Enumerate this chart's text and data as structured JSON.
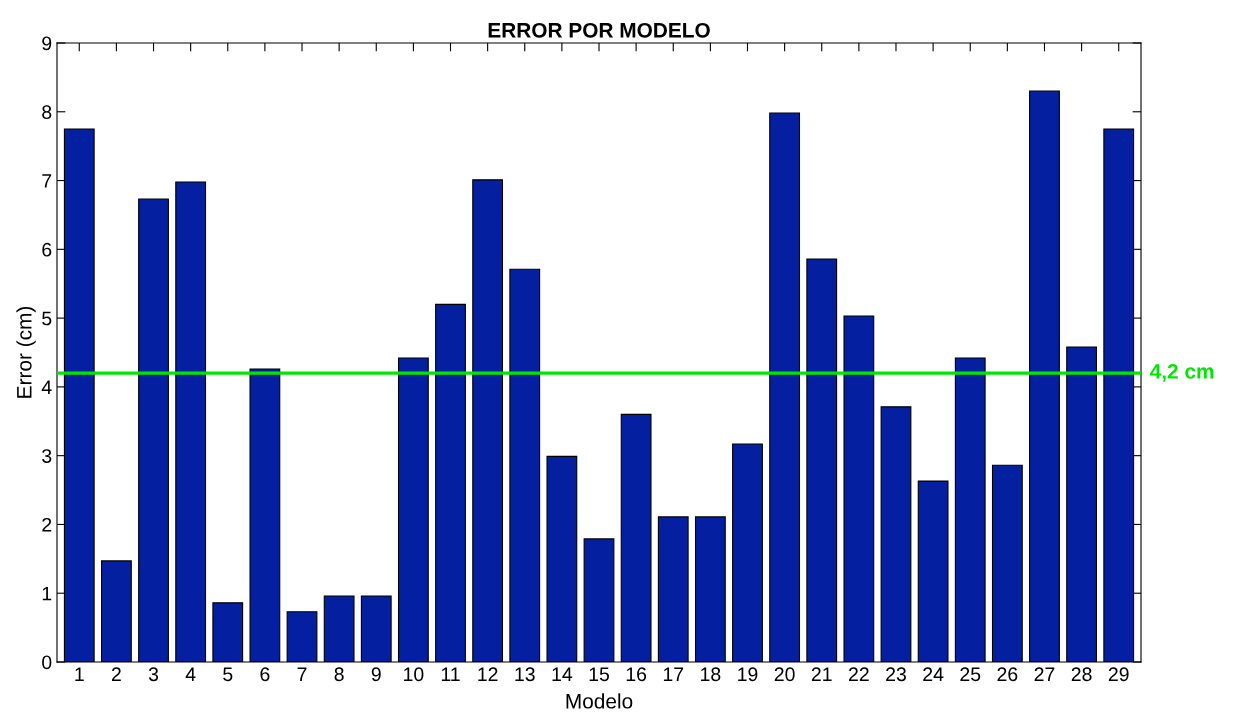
{
  "chart_data": {
    "type": "bar",
    "title": "ERROR POR MODELO",
    "xlabel": "Modelo",
    "ylabel": "Error (cm)",
    "categories": [
      "1",
      "2",
      "3",
      "4",
      "5",
      "6",
      "7",
      "8",
      "9",
      "10",
      "11",
      "12",
      "13",
      "14",
      "15",
      "16",
      "17",
      "18",
      "19",
      "20",
      "21",
      "22",
      "23",
      "24",
      "25",
      "26",
      "27",
      "28",
      "29"
    ],
    "values": [
      7.75,
      1.47,
      6.73,
      6.98,
      0.86,
      4.26,
      0.73,
      0.96,
      0.96,
      4.42,
      5.2,
      7.01,
      5.71,
      2.99,
      1.79,
      3.6,
      2.11,
      2.11,
      3.17,
      7.98,
      5.86,
      5.03,
      3.71,
      2.63,
      4.42,
      2.86,
      8.3,
      4.58,
      7.75
    ],
    "color": "#0420a0",
    "ylim": [
      0,
      9
    ],
    "yticks": [
      0,
      1,
      2,
      3,
      4,
      5,
      6,
      7,
      8,
      9
    ],
    "grid": false,
    "ref_lines": [
      {
        "axis": "y",
        "value": 4.2,
        "label": "4,2 cm",
        "color": "#00e600",
        "line_style": "solid"
      }
    ]
  }
}
